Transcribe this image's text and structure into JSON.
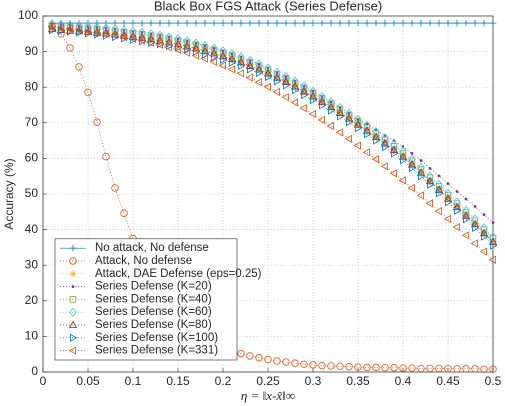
{
  "chart_data": {
    "type": "line",
    "title": "Black Box FGS Attack (Series Defense)",
    "xlabel": "η = ‖x-x̃‖∞",
    "ylabel": "Accuracy (%)",
    "x": [
      0.01,
      0.02,
      0.03,
      0.04,
      0.05,
      0.06,
      0.07,
      0.08,
      0.09,
      0.1,
      0.11,
      0.12,
      0.13,
      0.14,
      0.15,
      0.16,
      0.17,
      0.18,
      0.19,
      0.2,
      0.21,
      0.22,
      0.23,
      0.24,
      0.25,
      0.26,
      0.27,
      0.28,
      0.29,
      0.3,
      0.31,
      0.32,
      0.33,
      0.34,
      0.35,
      0.36,
      0.37,
      0.38,
      0.39,
      0.4,
      0.41,
      0.42,
      0.43,
      0.44,
      0.45,
      0.46,
      0.47,
      0.48,
      0.49,
      0.5
    ],
    "xlim": [
      0,
      0.5
    ],
    "xticks": [
      0,
      0.05,
      0.1,
      0.15,
      0.2,
      0.25,
      0.3,
      0.35,
      0.4,
      0.45,
      0.5
    ],
    "ylim": [
      0,
      100
    ],
    "yticks": [
      0,
      10,
      20,
      30,
      40,
      50,
      60,
      70,
      80,
      90,
      100
    ],
    "grid": true,
    "legend": "southwest",
    "series": [
      {
        "name": "No attack, No defense",
        "color": "#0072bd",
        "marker": "+",
        "linestyle": "solid",
        "values": [
          98,
          98,
          98,
          98,
          98,
          98,
          98,
          98,
          98,
          98,
          98,
          98,
          98,
          98,
          98,
          98,
          98,
          98,
          98,
          98,
          98,
          98,
          98,
          98,
          98,
          98,
          98,
          98,
          98,
          98,
          98,
          98,
          98,
          98,
          98,
          98,
          98,
          98,
          98,
          98,
          98,
          98,
          98,
          98,
          98,
          98,
          98,
          98,
          98,
          98
        ]
      },
      {
        "name": "Attack, No defense",
        "color": "#d95319",
        "marker": "o",
        "linestyle": "dotted",
        "values": [
          97.0,
          95.0,
          91.0,
          85.7,
          78.5,
          70.2,
          60.5,
          51.7,
          44.6,
          37.5,
          31.6,
          26.5,
          22.2,
          18.6,
          15.6,
          13.1,
          11.1,
          9.5,
          8.1,
          7.0,
          6.0,
          5.2,
          4.5,
          4.0,
          3.5,
          3.1,
          2.8,
          2.5,
          2.2,
          2.0,
          1.8,
          1.7,
          1.6,
          1.5,
          1.4,
          1.3,
          1.3,
          1.2,
          1.2,
          1.1,
          1.1,
          1.0,
          1.0,
          1.0,
          0.9,
          0.9,
          0.9,
          0.9,
          0.8,
          0.8
        ]
      },
      {
        "name": "Attack, DAE Defense (eps=0.25)",
        "color": "#edb120",
        "marker": "*",
        "linestyle": "dotted",
        "values": [
          96.3,
          96.1,
          95.9,
          95.7,
          95.5,
          95.3,
          95.1,
          94.8,
          94.5,
          94.2,
          93.9,
          93.5,
          93.1,
          92.6,
          92.1,
          91.5,
          90.9,
          90.2,
          89.5,
          88.7,
          87.9,
          87.0,
          86.0,
          85.0,
          83.9,
          82.7,
          81.5,
          80.2,
          78.8,
          77.4,
          75.9,
          74.4,
          72.8,
          71.2,
          69.5,
          67.8,
          66.0,
          64.2,
          62.4,
          60.5,
          58.3,
          56.0,
          53.6,
          51.2,
          48.7,
          46.3,
          43.9,
          41.5,
          39.0,
          36.5
        ]
      },
      {
        "name": "Series Defense (K=20)",
        "color": "#7e2f8e",
        "marker": ".",
        "linestyle": "dotted",
        "values": [
          97.8,
          97.6,
          97.4,
          97.2,
          97.0,
          96.8,
          96.6,
          96.3,
          96.0,
          95.7,
          95.4,
          95.0,
          94.6,
          94.1,
          93.6,
          93.0,
          92.4,
          91.7,
          91.0,
          90.2,
          89.4,
          88.5,
          87.5,
          86.5,
          85.4,
          84.2,
          83.0,
          81.7,
          80.3,
          78.9,
          77.4,
          75.9,
          74.3,
          72.7,
          71.0,
          69.6,
          68.0,
          66.5,
          65.0,
          63.3,
          61.4,
          59.4,
          57.2,
          55.1,
          52.9,
          50.7,
          48.6,
          46.5,
          44.2,
          42.0
        ]
      },
      {
        "name": "Series Defense (K=40)",
        "color": "#77ac30",
        "marker": "s",
        "linestyle": "dotted",
        "values": [
          97.3,
          97.1,
          96.9,
          96.7,
          96.5,
          96.3,
          96.1,
          95.8,
          95.5,
          95.2,
          94.9,
          94.5,
          94.1,
          93.6,
          93.1,
          92.5,
          91.9,
          91.2,
          90.5,
          89.7,
          88.9,
          88.0,
          87.0,
          86.0,
          84.9,
          83.7,
          82.5,
          81.2,
          79.8,
          78.4,
          76.9,
          75.4,
          73.8,
          72.2,
          70.5,
          68.8,
          67.0,
          65.2,
          63.4,
          61.5,
          59.3,
          57.0,
          54.6,
          52.2,
          49.7,
          47.3,
          44.9,
          42.5,
          40.0,
          37.5
        ]
      },
      {
        "name": "Series Defense (K=60)",
        "color": "#4dbeee",
        "marker": "d",
        "linestyle": "dotted",
        "values": [
          97.8,
          97.6,
          97.4,
          97.2,
          97.0,
          96.8,
          96.6,
          96.3,
          96.0,
          95.7,
          95.4,
          95.0,
          94.6,
          94.1,
          93.6,
          93.0,
          92.4,
          91.7,
          91.0,
          90.2,
          89.4,
          88.5,
          87.5,
          86.5,
          85.4,
          84.2,
          83.0,
          81.7,
          80.3,
          78.9,
          77.4,
          75.9,
          74.3,
          72.7,
          71.0,
          69.3,
          67.5,
          65.7,
          63.9,
          62.0,
          59.8,
          57.5,
          55.1,
          52.7,
          50.2,
          47.8,
          45.4,
          43.0,
          40.5,
          38.0
        ]
      },
      {
        "name": "Series Defense (K=80)",
        "color": "#a2142f",
        "marker": "^",
        "linestyle": "dotted",
        "values": [
          96.3,
          96.1,
          95.9,
          95.7,
          95.5,
          95.3,
          95.1,
          94.8,
          94.5,
          94.2,
          93.9,
          93.5,
          93.1,
          92.6,
          92.1,
          91.5,
          90.9,
          90.2,
          89.5,
          88.7,
          87.9,
          87.0,
          86.0,
          85.0,
          83.9,
          82.7,
          81.5,
          80.2,
          78.8,
          77.4,
          75.9,
          74.4,
          72.8,
          71.2,
          69.5,
          67.8,
          66.0,
          64.2,
          62.4,
          60.5,
          58.3,
          56.0,
          53.6,
          51.2,
          48.7,
          46.3,
          43.9,
          41.5,
          39.0,
          36.5
        ]
      },
      {
        "name": "Series Defense (K=100)",
        "color": "#0072bd",
        "marker": ">",
        "linestyle": "dotted",
        "values": [
          96.0,
          95.8,
          95.6,
          95.4,
          95.1,
          94.8,
          94.5,
          94.1,
          93.7,
          93.3,
          92.9,
          92.5,
          92.1,
          91.6,
          91.1,
          90.5,
          89.9,
          89.2,
          88.5,
          87.7,
          86.9,
          86.0,
          85.0,
          84.0,
          82.9,
          81.7,
          80.5,
          79.2,
          77.8,
          76.4,
          74.9,
          73.4,
          71.8,
          70.2,
          68.5,
          66.8,
          65.0,
          63.2,
          61.4,
          59.5,
          57.3,
          55.0,
          52.6,
          50.2,
          47.7,
          45.3,
          42.9,
          40.5,
          38.0,
          35.5
        ]
      },
      {
        "name": "Series Defense (K=331)",
        "color": "#d95319",
        "marker": "<",
        "linestyle": "dotted",
        "values": [
          97.0,
          96.7,
          96.4,
          96.1,
          95.8,
          95.4,
          95.0,
          94.6,
          94.1,
          93.6,
          93.1,
          92.5,
          91.9,
          91.2,
          90.5,
          89.7,
          88.9,
          88.0,
          87.1,
          86.1,
          85.0,
          83.9,
          82.7,
          81.4,
          80.1,
          78.7,
          77.2,
          75.7,
          74.1,
          72.5,
          70.8,
          69.1,
          67.3,
          65.5,
          63.6,
          61.7,
          59.8,
          57.8,
          55.8,
          53.8,
          51.7,
          49.6,
          47.4,
          45.2,
          43.0,
          40.7,
          38.4,
          36.1,
          33.8,
          31.5
        ]
      }
    ]
  }
}
